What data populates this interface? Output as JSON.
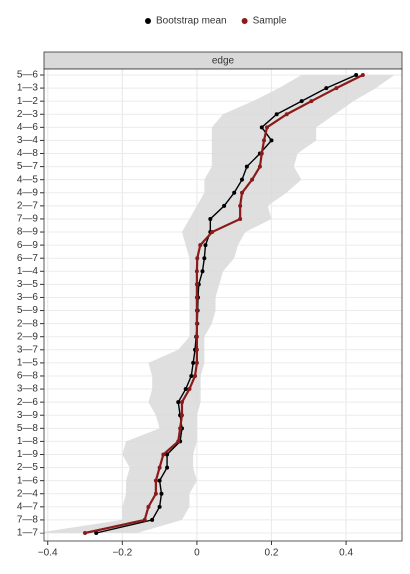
{
  "chart_data": {
    "type": "line",
    "orientation": "horizontal",
    "strip_label": "edge",
    "categories": [
      "5—6",
      "1—3",
      "1—2",
      "2—3",
      "4—6",
      "3—4",
      "4—8",
      "5—7",
      "4—5",
      "4—9",
      "2—7",
      "7—9",
      "8—9",
      "6—9",
      "6—7",
      "1—4",
      "3—5",
      "3—6",
      "5—9",
      "2—8",
      "2—9",
      "3—7",
      "1—5",
      "6—8",
      "3—8",
      "2—6",
      "3—9",
      "5—8",
      "1—8",
      "1—9",
      "2—5",
      "1—6",
      "2—4",
      "4—7",
      "7—8",
      "1—7"
    ],
    "series": [
      {
        "name": "Bootstrap mean",
        "color": "#000000",
        "values": [
          0.427,
          0.347,
          0.281,
          0.214,
          0.174,
          0.2,
          0.169,
          0.134,
          0.121,
          0.1,
          0.073,
          0.036,
          0.036,
          0.023,
          0.02,
          0.015,
          0.005,
          0.003,
          0.002,
          0.001,
          -0.002,
          -0.005,
          -0.01,
          -0.015,
          -0.03,
          -0.05,
          -0.045,
          -0.04,
          -0.045,
          -0.08,
          -0.08,
          -0.1,
          -0.095,
          -0.1,
          -0.12,
          -0.27
        ]
      },
      {
        "name": "Sample",
        "color": "#8b1a1a",
        "values": [
          0.445,
          0.374,
          0.307,
          0.241,
          0.188,
          0.18,
          0.174,
          0.169,
          0.148,
          0.121,
          0.116,
          0.116,
          0.041,
          0.009,
          0.001,
          0,
          0,
          0,
          0,
          0,
          0,
          0,
          0,
          -0.005,
          -0.02,
          -0.04,
          -0.04,
          -0.045,
          -0.05,
          -0.09,
          -0.1,
          -0.11,
          -0.11,
          -0.13,
          -0.14,
          -0.3
        ]
      }
    ],
    "ci_lower": [
      0.28,
      0.22,
      0.15,
      0.07,
      0.04,
      0.04,
      0.04,
      0.04,
      0.02,
      0.02,
      0,
      -0.02,
      -0.04,
      -0.03,
      -0.02,
      -0.02,
      -0.02,
      -0.02,
      -0.02,
      -0.02,
      -0.02,
      -0.05,
      -0.13,
      -0.12,
      -0.12,
      -0.13,
      -0.11,
      -0.1,
      -0.19,
      -0.2,
      -0.18,
      -0.19,
      -0.19,
      -0.2,
      -0.2,
      -0.43
    ],
    "ci_upper": [
      0.53,
      0.48,
      0.42,
      0.37,
      0.32,
      0.32,
      0.27,
      0.26,
      0.28,
      0.24,
      0.19,
      0.2,
      0.13,
      0.11,
      0.1,
      0.07,
      0.06,
      0.05,
      0.05,
      0.04,
      0.02,
      0.02,
      0.02,
      0.01,
      0.01,
      0.01,
      0,
      0,
      0,
      -0.01,
      -0.01,
      0,
      -0.02,
      -0.02,
      -0.04,
      -0.16
    ],
    "ci_color": "#d9d9d9",
    "xlim": [
      -0.41,
      0.55
    ],
    "xticks": [
      {
        "value": -0.4,
        "label": "−0.4"
      },
      {
        "value": -0.2,
        "label": "−0.2"
      },
      0,
      0.2,
      0.4
    ],
    "grid": true,
    "legend": "top"
  }
}
